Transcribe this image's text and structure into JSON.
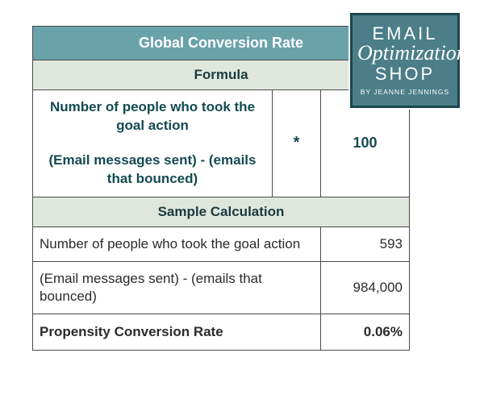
{
  "colors": {
    "teal_header_bg": "#6aa2aa",
    "teal_header_text": "#ffffff",
    "sub_header_bg": "#dfe7dd",
    "sub_header_text": "#1b3a3f",
    "formula_text": "#144a52",
    "body_text": "#2b2b2b",
    "border": "#4a4a4a",
    "logo_bg": "#4b7e88",
    "logo_border": "#1e4650",
    "logo_text": "#ffffff"
  },
  "title": "Global Conversion Rate",
  "formula_header": "Formula",
  "formula": {
    "numerator": "Number of people who took the goal action",
    "denominator": "(Email messages sent) - (emails that bounced)",
    "operator": "*",
    "constant": "100"
  },
  "sample_header": "Sample Calculation",
  "samples": [
    {
      "label": "Number of people who took the goal action",
      "value": "593"
    },
    {
      "label": "(Email messages sent) - (emails that bounced)",
      "value": "984,000"
    }
  ],
  "result": {
    "label": "Propensity Conversion Rate",
    "value": "0.06%"
  },
  "logo": {
    "line1": "EMAIL",
    "line2": "Optimization",
    "line3": "SHOP",
    "byline": "BY JEANNE JENNINGS"
  }
}
